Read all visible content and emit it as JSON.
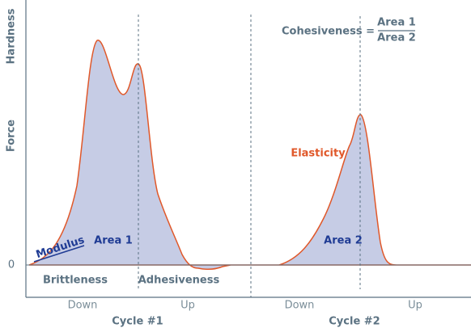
{
  "axis": {
    "y_label_top": "Hardness",
    "y_label": "Force",
    "zero": "0"
  },
  "formula": {
    "label": "Cohesiveness =",
    "numerator": "Area 1",
    "denominator": "Area 2"
  },
  "annotations": {
    "modulus": "Modulus",
    "area1": "Area 1",
    "area2": "Area 2",
    "elasticity": "Elasticity",
    "brittleness": "Brittleness",
    "adhesiveness": "Adhesiveness"
  },
  "x_axis": {
    "phases": [
      "Down",
      "Up",
      "Down",
      "Up"
    ],
    "cycles": [
      "Cycle #1",
      "Cycle #2"
    ]
  }
}
